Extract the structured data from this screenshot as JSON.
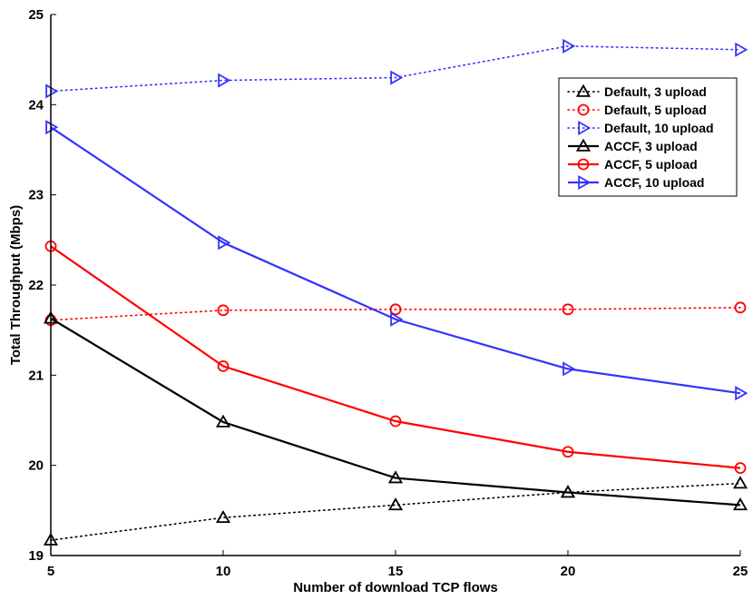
{
  "chart_data": {
    "type": "line",
    "xlabel": "Number of download TCP flows",
    "ylabel": "Total Throughput (Mbps)",
    "xlim": [
      5,
      25
    ],
    "ylim": [
      19,
      25
    ],
    "xticks": [
      "5",
      "10",
      "15",
      "20",
      "25"
    ],
    "yticks": [
      "19",
      "20",
      "21",
      "22",
      "23",
      "24",
      "25"
    ],
    "x": [
      5,
      10,
      15,
      20,
      25
    ],
    "legend_position": "top-right",
    "series": [
      {
        "name": "Default, 3 upload",
        "color": "#000000",
        "dash": "dotted",
        "marker": "triangle-up",
        "values": [
          19.17,
          19.42,
          19.56,
          19.7,
          19.8
        ]
      },
      {
        "name": "Default, 5 upload",
        "color": "#ff0000",
        "dash": "dotted",
        "marker": "circle",
        "values": [
          21.61,
          21.72,
          21.73,
          21.73,
          21.75
        ]
      },
      {
        "name": "Default, 10 upload",
        "color": "#3333ff",
        "dash": "dotted",
        "marker": "triangle-right",
        "values": [
          24.15,
          24.27,
          24.3,
          24.65,
          24.61
        ]
      },
      {
        "name": "ACCF, 3 upload",
        "color": "#000000",
        "dash": "solid",
        "marker": "triangle-up",
        "values": [
          21.63,
          20.48,
          19.86,
          19.7,
          19.56
        ]
      },
      {
        "name": "ACCF, 5 upload",
        "color": "#ff0000",
        "dash": "solid",
        "marker": "circle",
        "values": [
          22.43,
          21.1,
          20.49,
          20.15,
          19.97
        ]
      },
      {
        "name": "ACCF, 10 upload",
        "color": "#3333ff",
        "dash": "solid",
        "marker": "triangle-right",
        "values": [
          23.75,
          22.47,
          21.62,
          21.07,
          20.8
        ]
      }
    ]
  }
}
